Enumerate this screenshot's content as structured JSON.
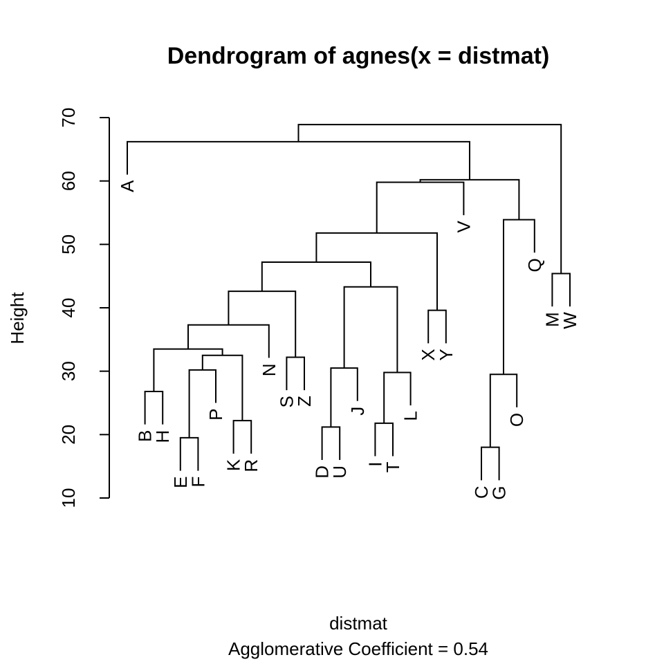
{
  "chart_data": {
    "type": "dendrogram",
    "title": "Dendrogram of  agnes(x = distmat)",
    "xlabel": "distmat",
    "ylabel": "Height",
    "subtitle": "Agglomerative Coefficient =  0.54",
    "ylim": [
      10,
      70
    ],
    "yticks": [
      10,
      20,
      30,
      40,
      50,
      60,
      70
    ],
    "leaf_order": [
      "A",
      "B",
      "H",
      "E",
      "F",
      "P",
      "K",
      "R",
      "N",
      "S",
      "Z",
      "D",
      "U",
      "J",
      "I",
      "T",
      "L",
      "X",
      "Y",
      "V",
      "C",
      "G",
      "O",
      "Q",
      "M",
      "W"
    ],
    "merges": [
      {
        "id": "BH",
        "left": "B",
        "right": "H",
        "height": 26.8
      },
      {
        "id": "EF",
        "left": "E",
        "right": "F",
        "height": 19.5
      },
      {
        "id": "EFP",
        "left": "EF",
        "right": "P",
        "height": 30.2
      },
      {
        "id": "KR",
        "left": "K",
        "right": "R",
        "height": 22.2
      },
      {
        "id": "EFPKR",
        "left": "EFP",
        "right": "KR",
        "height": 32.5
      },
      {
        "id": "G1",
        "left": "BH",
        "right": "EFPKR",
        "height": 33.5
      },
      {
        "id": "G2",
        "left": "G1",
        "right": "N",
        "height": 37.3
      },
      {
        "id": "SZ",
        "left": "S",
        "right": "Z",
        "height": 32.2
      },
      {
        "id": "G3",
        "left": "G2",
        "right": "SZ",
        "height": 42.6
      },
      {
        "id": "DU",
        "left": "D",
        "right": "U",
        "height": 21.2
      },
      {
        "id": "DUJ",
        "left": "DU",
        "right": "J",
        "height": 30.5
      },
      {
        "id": "IT",
        "left": "I",
        "right": "T",
        "height": 21.8
      },
      {
        "id": "ITL",
        "left": "IT",
        "right": "L",
        "height": 29.8
      },
      {
        "id": "G4",
        "left": "DUJ",
        "right": "ITL",
        "height": 43.3
      },
      {
        "id": "G5",
        "left": "G3",
        "right": "G4",
        "height": 47.2
      },
      {
        "id": "XY",
        "left": "X",
        "right": "Y",
        "height": 39.6
      },
      {
        "id": "G6",
        "left": "G5",
        "right": "XY",
        "height": 51.8
      },
      {
        "id": "G7",
        "left": "G6",
        "right": "V",
        "height": 59.8
      },
      {
        "id": "CG",
        "left": "C",
        "right": "G",
        "height": 18.0
      },
      {
        "id": "CGO",
        "left": "CG",
        "right": "O",
        "height": 29.5
      },
      {
        "id": "CGOQ",
        "left": "CGO",
        "right": "Q",
        "height": 53.9
      },
      {
        "id": "G8",
        "left": "G7",
        "right": "CGOQ",
        "height": 60.2
      },
      {
        "id": "G9",
        "left": "A",
        "right": "G8",
        "height": 66.2
      },
      {
        "id": "MW",
        "left": "M",
        "right": "W",
        "height": 45.4
      },
      {
        "id": "ROOT",
        "left": "G9",
        "right": "MW",
        "height": 68.9
      }
    ]
  }
}
